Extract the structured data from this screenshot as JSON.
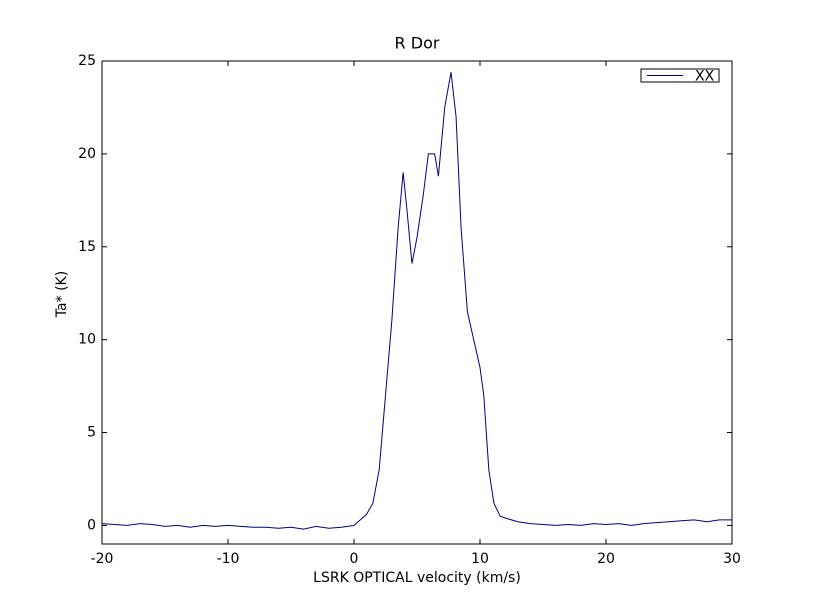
{
  "chart_data": {
    "type": "line",
    "title": "R Dor",
    "xlabel": "LSRK OPTICAL velocity (km/s)",
    "ylabel": "Ta* (K)",
    "x": [
      -20,
      -19,
      -18,
      -17,
      -16,
      -15,
      -14,
      -13,
      -12,
      -11,
      -10,
      -9,
      -8,
      -7,
      -6,
      -5,
      -4,
      -3,
      -2,
      -1,
      0,
      0.5,
      1,
      1.5,
      2,
      2.5,
      3,
      3.5,
      3.9,
      4.2,
      4.6,
      5,
      5.5,
      5.9,
      6.4,
      6.7,
      7.2,
      7.7,
      8.1,
      8.5,
      9,
      9.5,
      10,
      10.3,
      10.7,
      11.1,
      11.6,
      12,
      13,
      14,
      15,
      16,
      17,
      18,
      19,
      20,
      21,
      22,
      23,
      24,
      25,
      26,
      27,
      28,
      29,
      30
    ],
    "series": [
      {
        "name": "XX",
        "color": "#000080",
        "values": [
          0.1,
          0.05,
          0.0,
          0.1,
          0.05,
          -0.05,
          0.0,
          -0.1,
          0.0,
          -0.05,
          0.0,
          -0.05,
          -0.1,
          -0.1,
          -0.15,
          -0.1,
          -0.2,
          -0.05,
          -0.15,
          -0.1,
          0.0,
          0.3,
          0.6,
          1.2,
          3.0,
          7.0,
          11.0,
          16.0,
          19.0,
          17.0,
          14.1,
          15.5,
          17.8,
          20.0,
          20.0,
          18.8,
          22.5,
          24.4,
          22.0,
          16.0,
          11.5,
          10.0,
          8.5,
          7.0,
          3.0,
          1.2,
          0.5,
          0.4,
          0.2,
          0.1,
          0.05,
          0.0,
          0.05,
          0.0,
          0.1,
          0.05,
          0.1,
          0.0,
          0.1,
          0.15,
          0.2,
          0.25,
          0.3,
          0.2,
          0.3,
          0.3
        ]
      }
    ],
    "xlim": [
      -20,
      30
    ],
    "xticks": [
      -20,
      -10,
      0,
      10,
      20,
      30
    ],
    "ylim": [
      -1,
      25
    ],
    "yticks": [
      0,
      5,
      10,
      15,
      20,
      25
    ],
    "legend": "upper right",
    "grid": false
  }
}
